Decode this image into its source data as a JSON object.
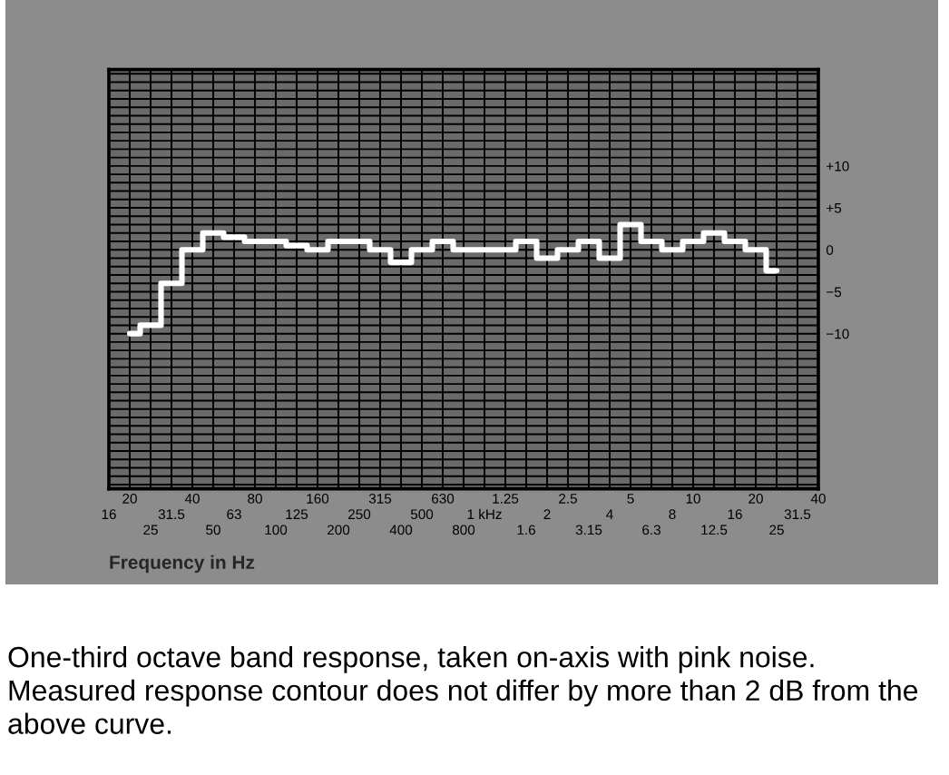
{
  "chart_data": {
    "type": "step",
    "xlabel": "Frequency in Hz",
    "annotations": [
      "One-third octave band response, taken on-axis with pink noise. Measured response contour does not differ by more than 2 dB from the above curve."
    ],
    "categories": [
      "16",
      "20",
      "25",
      "31.5",
      "40",
      "50",
      "63",
      "80",
      "100",
      "125",
      "160",
      "200",
      "250",
      "315",
      "400",
      "500",
      "630",
      "800",
      "1 kHz",
      "1.25",
      "1.6",
      "2",
      "2.5",
      "3.15",
      "4",
      "5",
      "6.3",
      "8",
      "10",
      "12.5",
      "16",
      "20",
      "25",
      "31.5",
      "40"
    ],
    "series": [
      {
        "color": "#ffffff",
        "values": [
          null,
          -10,
          -9,
          -4,
          0,
          2,
          1.5,
          1,
          1,
          0.5,
          0,
          1,
          1,
          0,
          -1.5,
          0,
          1,
          0,
          0,
          0,
          1,
          -1,
          0,
          1,
          -1,
          3,
          1,
          0,
          1,
          2,
          1,
          0,
          -2.5,
          null,
          null
        ]
      }
    ],
    "ylim": [
      -28.5,
      21.5
    ],
    "yticks": [
      {
        "value": -28,
        "label": null
      },
      {
        "value": -27,
        "label": null
      },
      {
        "value": -26,
        "label": null
      },
      {
        "value": -25,
        "label": null
      },
      {
        "value": -24,
        "label": null
      },
      {
        "value": -23,
        "label": null
      },
      {
        "value": -22,
        "label": null
      },
      {
        "value": -21,
        "label": null
      },
      {
        "value": -20,
        "label": null
      },
      {
        "value": -19,
        "label": null
      },
      {
        "value": -18,
        "label": null
      },
      {
        "value": -17,
        "label": null
      },
      {
        "value": -16,
        "label": null
      },
      {
        "value": -15,
        "label": null
      },
      {
        "value": -14,
        "label": null
      },
      {
        "value": -13,
        "label": null
      },
      {
        "value": -12,
        "label": null
      },
      {
        "value": -11,
        "label": null
      },
      {
        "value": -10,
        "label": "−10"
      },
      {
        "value": -9,
        "label": null
      },
      {
        "value": -8,
        "label": null
      },
      {
        "value": -7,
        "label": null
      },
      {
        "value": -6,
        "label": null
      },
      {
        "value": -5,
        "label": "−5"
      },
      {
        "value": -4,
        "label": null
      },
      {
        "value": -3,
        "label": null
      },
      {
        "value": -2,
        "label": null
      },
      {
        "value": -1,
        "label": null
      },
      0,
      {
        "value": 1,
        "label": null
      },
      {
        "value": 2,
        "label": null
      },
      {
        "value": 3,
        "label": null
      },
      {
        "value": 4,
        "label": null
      },
      {
        "value": 5,
        "label": "+5"
      },
      {
        "value": 6,
        "label": null
      },
      {
        "value": 7,
        "label": null
      },
      {
        "value": 8,
        "label": null
      },
      {
        "value": 9,
        "label": null
      },
      {
        "value": 10,
        "label": "+10"
      },
      {
        "value": 11,
        "label": null
      },
      {
        "value": 12,
        "label": null
      },
      {
        "value": 13,
        "label": null
      },
      {
        "value": 14,
        "label": null
      },
      {
        "value": 15,
        "label": null
      },
      {
        "value": 16,
        "label": null
      },
      {
        "value": 17,
        "label": null
      },
      {
        "value": 18,
        "label": null
      },
      {
        "value": 19,
        "label": null
      },
      {
        "value": 20,
        "label": null
      },
      {
        "value": 21,
        "label": null
      }
    ],
    "grid": true
  }
}
